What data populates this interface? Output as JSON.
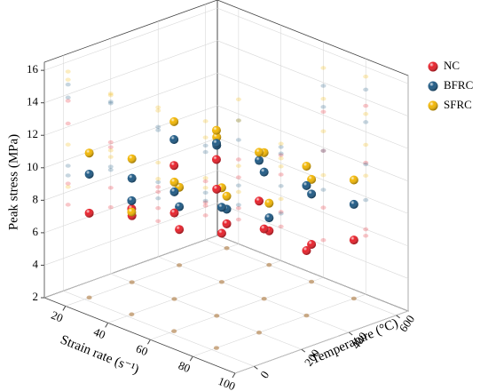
{
  "chart_data": {
    "type": "scatter3d",
    "xlabel": "Strain rate (s⁻¹)",
    "ylabel": "Temperature (°C)",
    "zlabel": "Peak stress (MPa)",
    "xlim": [
      10,
      100
    ],
    "ylim": [
      -80,
      650
    ],
    "zlim": [
      2,
      16.5
    ],
    "xticks": [
      20,
      40,
      60,
      80,
      100
    ],
    "yticks": [
      0,
      200,
      400,
      600
    ],
    "zticks": [
      2,
      4,
      6,
      8,
      10,
      12,
      14,
      16
    ],
    "grid": true,
    "legend": "upper right",
    "series": [
      {
        "name": "NC",
        "color": "#e8202a",
        "x": [
          20,
          20,
          20,
          20,
          40,
          40,
          40,
          40,
          60,
          60,
          60,
          60,
          80,
          80,
          80,
          80
        ],
        "y": [
          20,
          200,
          400,
          600,
          20,
          200,
          400,
          600,
          20,
          200,
          400,
          600,
          20,
          200,
          400,
          600
        ],
        "z": [
          7.2,
          6.1,
          4.2,
          3.5,
          8.5,
          7.3,
          5.0,
          4.1,
          12.2,
          9.8,
          6.3,
          4.3,
          13.6,
          10.1,
          6.0,
          5.6
        ]
      },
      {
        "name": "BFRC",
        "color": "#1f5a85",
        "x": [
          20,
          20,
          20,
          20,
          40,
          40,
          40,
          40,
          60,
          60,
          60,
          60,
          80,
          80,
          80,
          80
        ],
        "y": [
          20,
          200,
          400,
          600,
          20,
          200,
          400,
          600,
          20,
          200,
          400,
          600,
          20,
          200,
          400,
          600
        ],
        "z": [
          9.6,
          8.4,
          5.6,
          4.4,
          9.0,
          8.6,
          6.6,
          4.9,
          13.8,
          12.5,
          9.8,
          7.4,
          14.6,
          12.6,
          10.0,
          7.8
        ]
      },
      {
        "name": "SFRC",
        "color": "#f2b705",
        "x": [
          20,
          20,
          20,
          20,
          40,
          40,
          40,
          40,
          60,
          60,
          60,
          60,
          80,
          80,
          80,
          80
        ],
        "y": [
          20,
          200,
          400,
          600,
          20,
          200,
          400,
          600,
          20,
          200,
          400,
          600,
          20,
          200,
          400,
          600
        ],
        "z": [
          10.9,
          9.6,
          6.8,
          5.2,
          8.3,
          9.2,
          7.8,
          5.8,
          14.9,
          13.0,
          11.0,
          8.3,
          15.4,
          13.1,
          11.2,
          9.3
        ]
      }
    ]
  }
}
